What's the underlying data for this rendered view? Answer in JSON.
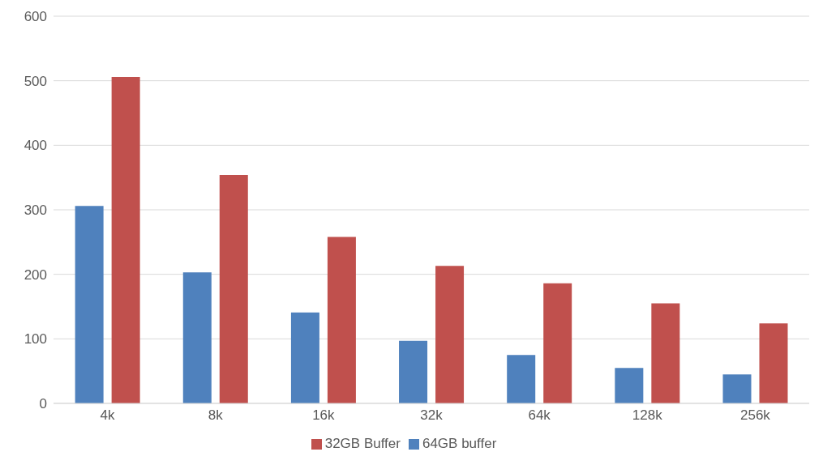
{
  "chart_data": {
    "type": "bar",
    "categories": [
      "4k",
      "8k",
      "16k",
      "32k",
      "64k",
      "128k",
      "256k"
    ],
    "series": [
      {
        "name": "64GB buffer",
        "color": "#4f81bd",
        "values": [
          306,
          203,
          141,
          97,
          75,
          55,
          45
        ]
      },
      {
        "name": "32GB Buffer",
        "color": "#c0504d",
        "values": [
          506,
          354,
          258,
          213,
          186,
          155,
          124
        ]
      }
    ],
    "ylim": [
      0,
      600
    ],
    "yticks": [
      0,
      100,
      200,
      300,
      400,
      500,
      600
    ],
    "grid": "y",
    "legend": "bottom"
  }
}
